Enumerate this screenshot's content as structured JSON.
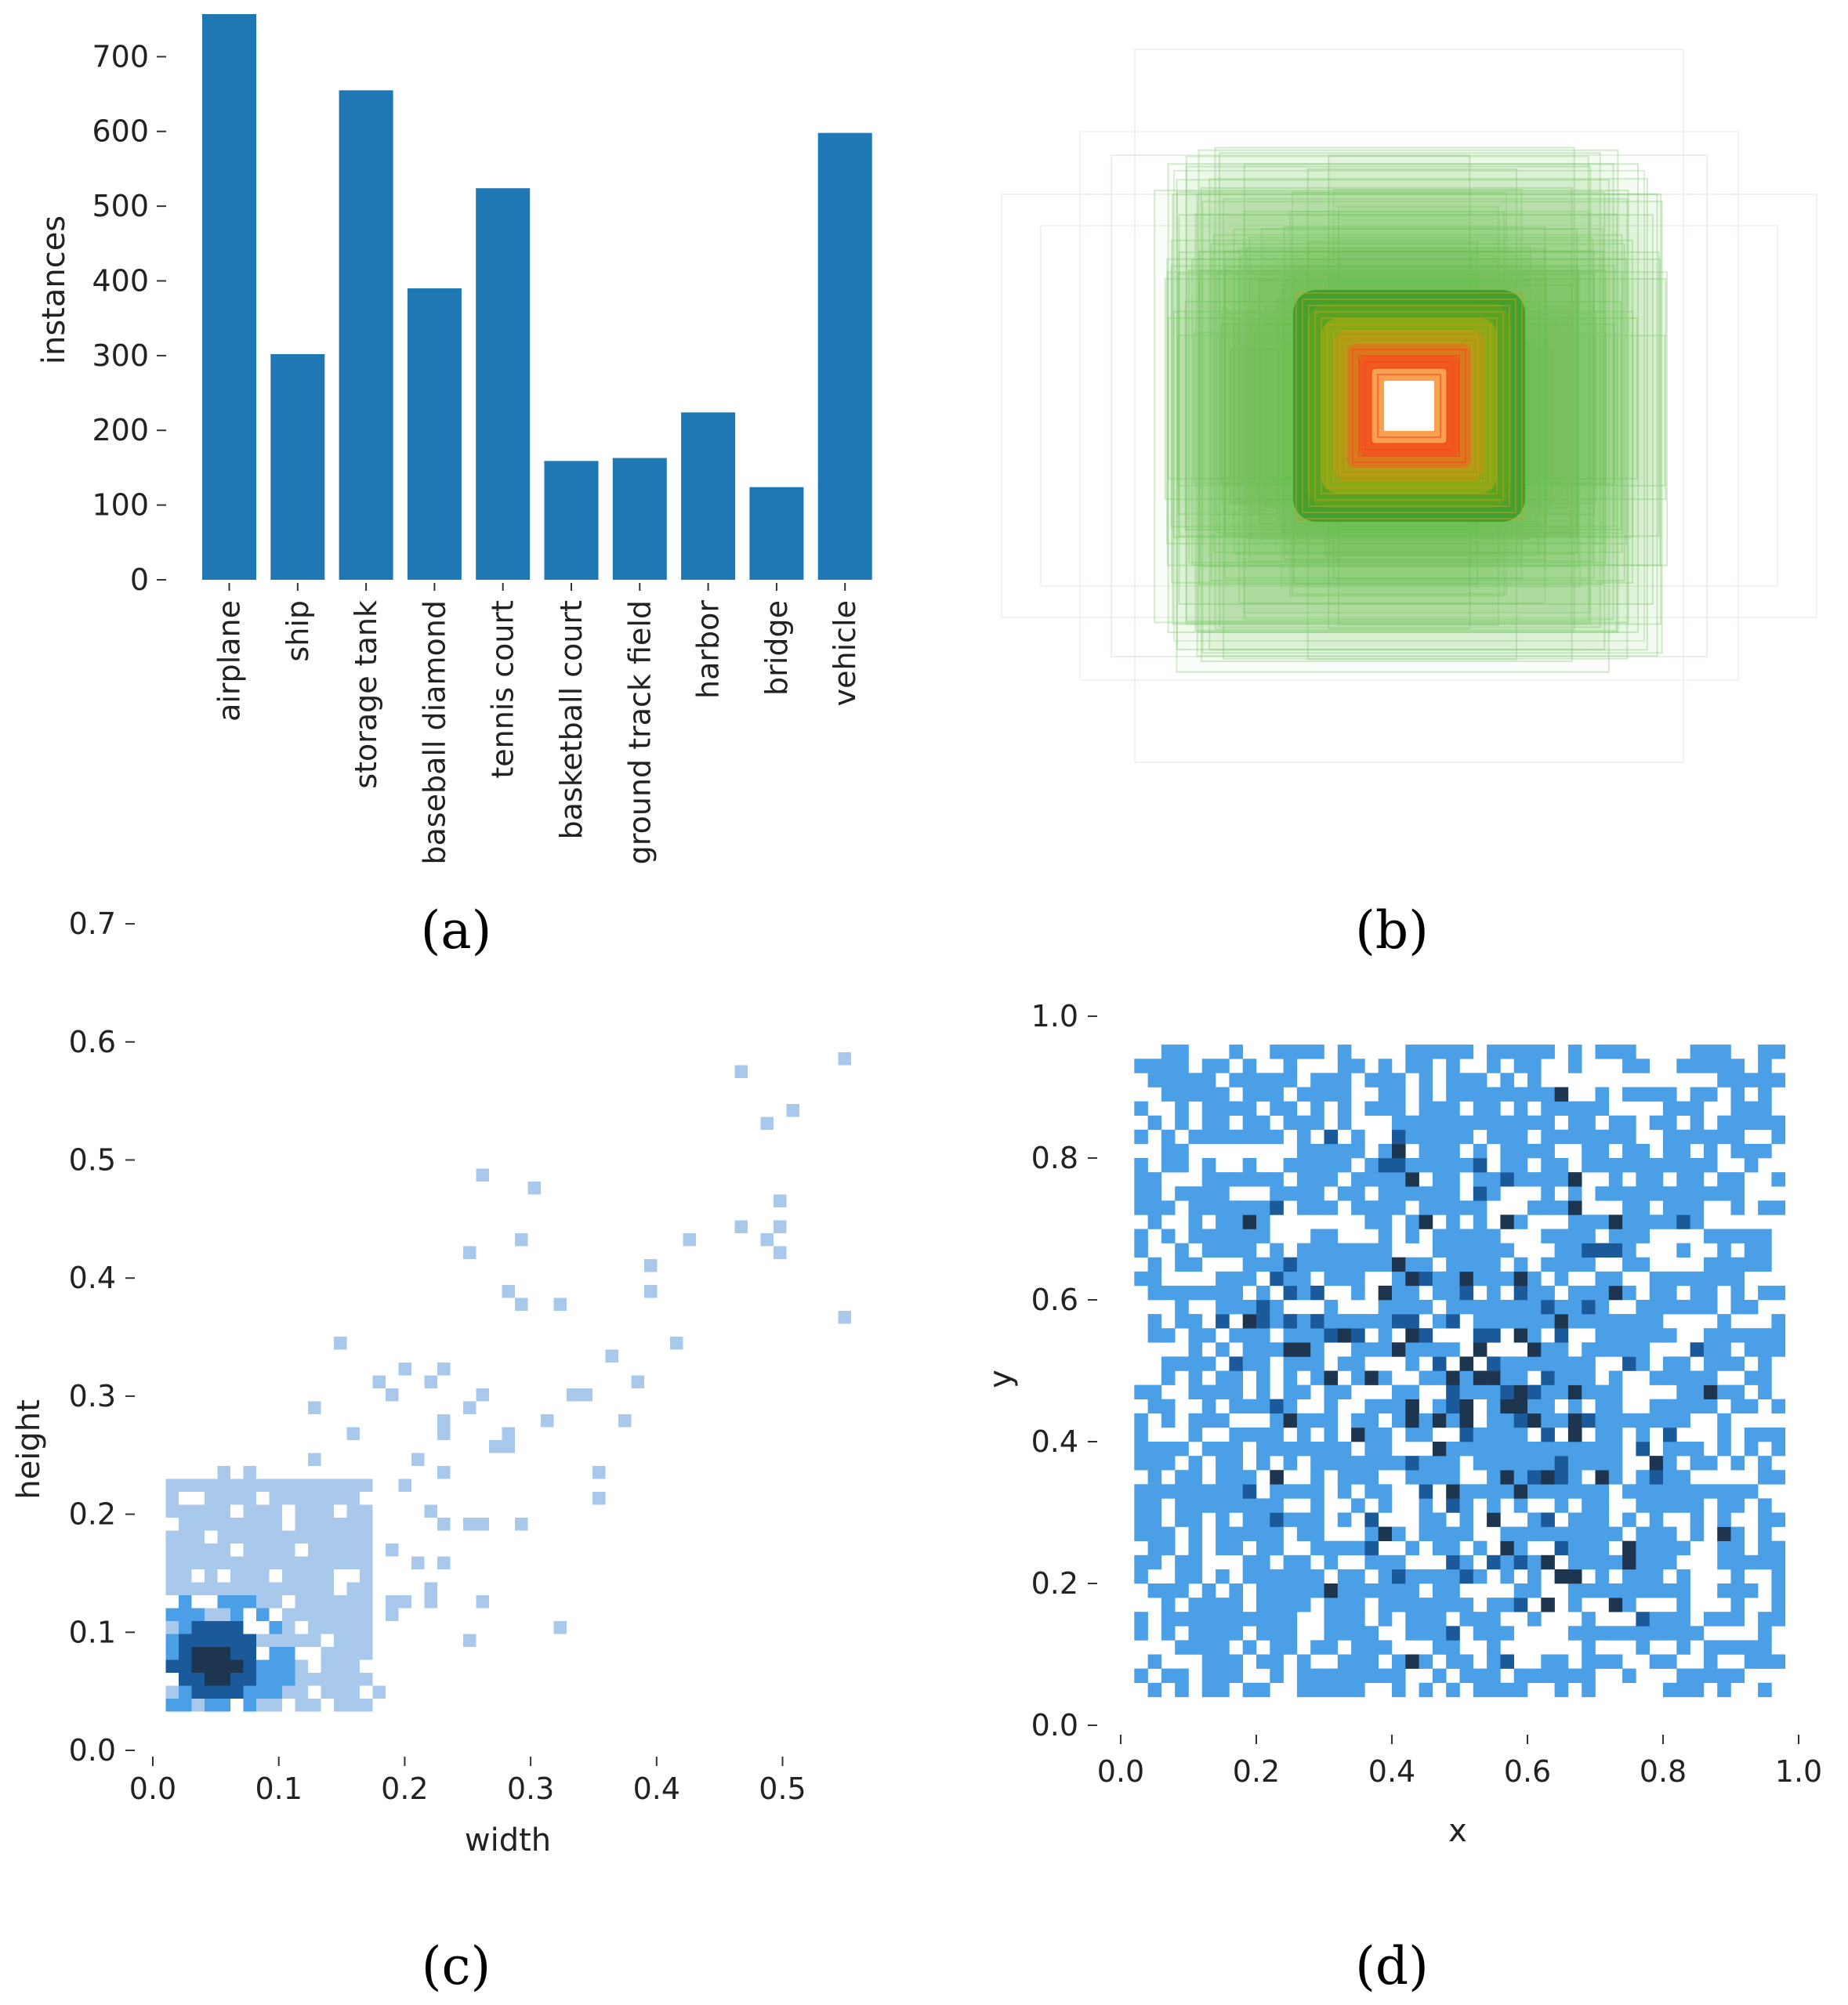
{
  "colors": {
    "bar": "#1f77b4",
    "hist_light": "#a8c8ec",
    "hist_mid": "#4a9fe6",
    "hist_dark": "#1a5a9a",
    "hist_darkest": "#1e3550",
    "tick_text": "#222222"
  },
  "captions": [
    "(a)",
    "(b)",
    "(c)",
    "(d)"
  ],
  "chart_data": [
    {
      "id": "a",
      "type": "bar",
      "title": "",
      "xlabel": "",
      "ylabel": "instances",
      "categories": [
        "airplane",
        "ship",
        "storage tank",
        "baseball diamond",
        "tennis court",
        "basketball court",
        "ground track field",
        "harbor",
        "bridge",
        "vehicle"
      ],
      "values": [
        757,
        302,
        655,
        390,
        524,
        159,
        163,
        224,
        124,
        598
      ],
      "ylim": [
        0,
        757
      ],
      "yticks": [
        0,
        100,
        200,
        300,
        400,
        500,
        600,
        700
      ],
      "grid": false,
      "legend": "none"
    },
    {
      "id": "b",
      "type": "heatmap",
      "description_kind": "overlaid bounding boxes centered at image center",
      "colormap": [
        "green",
        "yellow",
        "orange",
        "red",
        "white"
      ],
      "grid": false,
      "legend": "none"
    },
    {
      "id": "c",
      "type": "heatmap",
      "title": "",
      "xlabel": "width",
      "ylabel": "height",
      "xlim": [
        0.0,
        0.55
      ],
      "ylim": [
        0.0,
        0.7
      ],
      "xticks": [
        0.0,
        0.1,
        0.2,
        0.3,
        0.4,
        0.5
      ],
      "yticks": [
        0.0,
        0.1,
        0.2,
        0.3,
        0.4,
        0.5,
        0.6,
        0.7
      ],
      "xtick_labels": [
        "0.0",
        "0.1",
        "0.2",
        "0.3",
        "0.4",
        "0.5"
      ],
      "ytick_labels": [
        "0.0",
        "0.1",
        "0.2",
        "0.3",
        "0.4",
        "0.5",
        "0.6",
        "0.7"
      ],
      "grid": false,
      "legend": "none"
    },
    {
      "id": "d",
      "type": "heatmap",
      "title": "",
      "xlabel": "x",
      "ylabel": "y",
      "xlim": [
        0.0,
        1.0
      ],
      "ylim": [
        0.0,
        1.0
      ],
      "xticks": [
        0.0,
        0.2,
        0.4,
        0.6,
        0.8,
        1.0
      ],
      "yticks": [
        0.0,
        0.2,
        0.4,
        0.6,
        0.8,
        1.0
      ],
      "xtick_labels": [
        "0.0",
        "0.2",
        "0.4",
        "0.6",
        "0.8",
        "1.0"
      ],
      "ytick_labels": [
        "0.0",
        "0.2",
        "0.4",
        "0.6",
        "0.8",
        "1.0"
      ],
      "grid": false,
      "legend": "none"
    }
  ]
}
